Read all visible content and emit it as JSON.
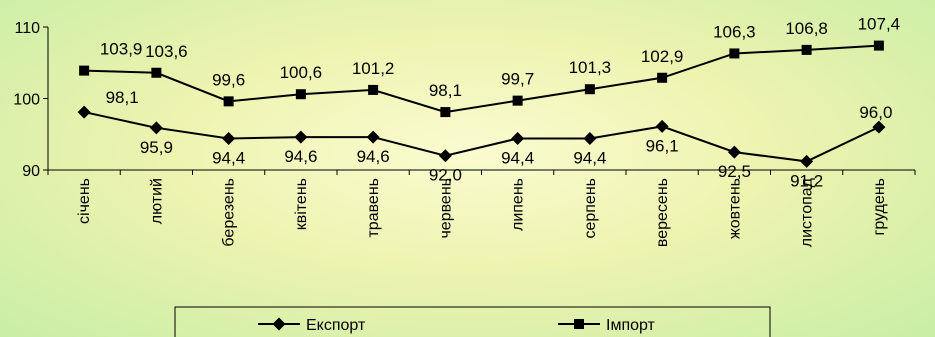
{
  "chart_data": {
    "type": "line",
    "categories": [
      "січень",
      "лютий",
      "березень",
      "квітень",
      "травень",
      "червень",
      "липень",
      "серпень",
      "вересень",
      "жовтень",
      "листопад",
      "грудень"
    ],
    "series": [
      {
        "name": "Експорт",
        "marker": "diamond",
        "values": [
          98.1,
          95.9,
          94.4,
          94.6,
          94.6,
          92.0,
          94.4,
          94.4,
          96.1,
          92.5,
          91.2,
          96.0
        ],
        "labels": [
          "98,1",
          "95,9",
          "94,4",
          "94,6",
          "94,6",
          "92,0",
          "94,4",
          "94,4",
          "96,1",
          "92,5",
          "91,2",
          "96,0"
        ]
      },
      {
        "name": "Імпорт",
        "marker": "square",
        "values": [
          103.9,
          103.6,
          99.6,
          100.6,
          101.2,
          98.1,
          99.7,
          101.3,
          102.9,
          106.3,
          106.8,
          107.4
        ],
        "labels": [
          "103,9",
          "103,6",
          "99,6",
          "100,6",
          "101,2",
          "98,1",
          "99,7",
          "101,3",
          "102,9",
          "106,3",
          "106,8",
          "107,4"
        ]
      }
    ],
    "yticks": [
      90,
      100,
      110
    ],
    "ylim": [
      90,
      110
    ],
    "grid": false,
    "legend_position": "bottom",
    "line_color": "#000000",
    "background_colors": [
      "#fbfbd0",
      "#c8eea5"
    ]
  }
}
